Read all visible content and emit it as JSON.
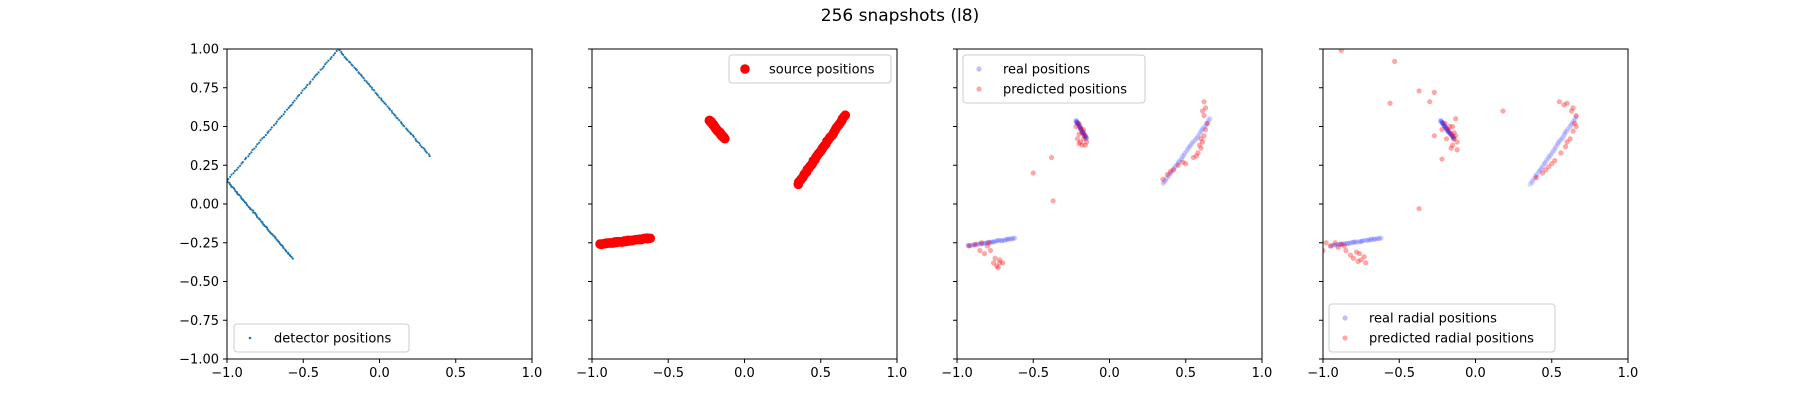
{
  "figure": {
    "title": "256 snapshots (l8)"
  },
  "chart_data": [
    {
      "type": "scatter",
      "title": "",
      "xlabel": "",
      "ylabel": "",
      "xlim": [
        -1.0,
        1.0
      ],
      "ylim": [
        -1.0,
        1.0
      ],
      "xticks": [
        "−1.0",
        "−0.5",
        "0.0",
        "0.5",
        "1.0"
      ],
      "yticks": [
        "−1.00",
        "−0.75",
        "−0.50",
        "−0.25",
        "0.00",
        "0.25",
        "0.50",
        "0.75",
        "1.00"
      ],
      "legend_position": "lower-center",
      "series": [
        {
          "name": "detector positions",
          "color": "#1f77b4",
          "marker_size": "tiny",
          "segments": [
            {
              "from": [
                -1.0,
                0.15
              ],
              "to": [
                -0.27,
                1.0
              ]
            },
            {
              "from": [
                -0.27,
                1.0
              ],
              "to": [
                0.33,
                0.31
              ]
            },
            {
              "from": [
                -1.0,
                0.15
              ],
              "to": [
                -0.57,
                -0.35
              ]
            }
          ],
          "points_per_segment": 70
        }
      ]
    },
    {
      "type": "scatter",
      "title": "",
      "xlabel": "",
      "ylabel": "",
      "xlim": [
        -1.0,
        1.0
      ],
      "ylim": [
        -1.0,
        1.0
      ],
      "xticks": [
        "−1.0",
        "−0.5",
        "0.0",
        "0.5",
        "1.0"
      ],
      "legend_position": "upper-right",
      "series": [
        {
          "name": "source positions",
          "color": "#ff0000",
          "marker_size": "large",
          "segments": [
            {
              "from": [
                -0.95,
                -0.26
              ],
              "to": [
                -0.62,
                -0.22
              ]
            },
            {
              "from": [
                -0.23,
                0.54
              ],
              "to": [
                -0.13,
                0.42
              ]
            },
            {
              "from": [
                0.35,
                0.13
              ],
              "to": [
                0.66,
                0.57
              ]
            }
          ],
          "points_per_segment": 40
        }
      ]
    },
    {
      "type": "scatter",
      "title": "",
      "xlabel": "",
      "ylabel": "",
      "xlim": [
        -1.0,
        1.0
      ],
      "ylim": [
        -1.0,
        1.0
      ],
      "xticks": [
        "−1.0",
        "−0.5",
        "0.0",
        "0.5",
        "1.0"
      ],
      "legend_position": "upper-left",
      "series": [
        {
          "name": "real positions",
          "color": "#0000ff",
          "alpha": 0.15,
          "segments": [
            {
              "from": [
                -0.93,
                -0.27
              ],
              "to": [
                -0.62,
                -0.22
              ]
            },
            {
              "from": [
                -0.22,
                0.54
              ],
              "to": [
                -0.15,
                0.42
              ]
            },
            {
              "from": [
                0.35,
                0.13
              ],
              "to": [
                0.66,
                0.55
              ]
            }
          ],
          "points_per_segment": 35
        },
        {
          "name": "predicted positions",
          "color": "#ff0000",
          "alpha": 0.35,
          "points": [
            [
              -0.92,
              -0.27
            ],
            [
              -0.88,
              -0.26
            ],
            [
              -0.85,
              -0.3
            ],
            [
              -0.82,
              -0.32
            ],
            [
              -0.8,
              -0.27
            ],
            [
              -0.78,
              -0.3
            ],
            [
              -0.76,
              -0.38
            ],
            [
              -0.74,
              -0.4
            ],
            [
              -0.72,
              -0.36
            ],
            [
              -0.7,
              -0.38
            ],
            [
              -0.75,
              -0.35
            ],
            [
              -0.73,
              -0.41
            ],
            [
              -0.84,
              -0.25
            ],
            [
              -0.79,
              -0.25
            ],
            [
              -0.22,
              0.5
            ],
            [
              -0.2,
              0.45
            ],
            [
              -0.19,
              0.4
            ],
            [
              -0.18,
              0.38
            ],
            [
              -0.2,
              0.52
            ],
            [
              -0.17,
              0.48
            ],
            [
              -0.16,
              0.44
            ],
            [
              -0.21,
              0.42
            ],
            [
              -0.18,
              0.46
            ],
            [
              -0.16,
              0.38
            ],
            [
              -0.2,
              0.39
            ],
            [
              -0.19,
              0.49
            ],
            [
              -0.17,
              0.42
            ],
            [
              -0.15,
              0.4
            ],
            [
              0.35,
              0.16
            ],
            [
              0.38,
              0.19
            ],
            [
              0.42,
              0.22
            ],
            [
              0.45,
              0.25
            ],
            [
              0.48,
              0.27
            ],
            [
              0.5,
              0.26
            ],
            [
              0.55,
              0.3
            ],
            [
              0.58,
              0.33
            ],
            [
              0.6,
              0.36
            ],
            [
              0.61,
              0.4
            ],
            [
              0.62,
              0.44
            ],
            [
              0.63,
              0.48
            ],
            [
              0.64,
              0.52
            ],
            [
              0.62,
              0.57
            ],
            [
              0.63,
              0.62
            ],
            [
              0.62,
              0.66
            ],
            [
              0.59,
              0.38
            ],
            [
              0.6,
              0.42
            ],
            [
              0.57,
              0.31
            ],
            [
              0.4,
              0.21
            ],
            [
              0.61,
              0.6
            ],
            [
              -0.37,
              0.02
            ],
            [
              -0.5,
              0.2
            ],
            [
              -0.38,
              0.3
            ],
            [
              -0.72,
              -0.38
            ]
          ]
        }
      ]
    },
    {
      "type": "scatter",
      "title": "",
      "xlabel": "",
      "ylabel": "",
      "xlim": [
        -1.0,
        1.0
      ],
      "ylim": [
        -1.0,
        1.0
      ],
      "xticks": [
        "−1.0",
        "−0.5",
        "0.0",
        "0.5",
        "1.0"
      ],
      "legend_position": "lower-left",
      "series": [
        {
          "name": "real radial positions",
          "color": "#0000ff",
          "alpha": 0.15,
          "segments": [
            {
              "from": [
                -0.95,
                -0.27
              ],
              "to": [
                -0.62,
                -0.22
              ]
            },
            {
              "from": [
                -0.23,
                0.54
              ],
              "to": [
                -0.14,
                0.42
              ]
            },
            {
              "from": [
                0.36,
                0.13
              ],
              "to": [
                0.66,
                0.56
              ]
            }
          ],
          "points_per_segment": 35
        },
        {
          "name": "predicted radial positions",
          "color": "#ff0000",
          "alpha": 0.35,
          "points": [
            [
              -0.98,
              -0.25
            ],
            [
              -0.95,
              -0.27
            ],
            [
              -0.92,
              -0.25
            ],
            [
              -0.9,
              -0.28
            ],
            [
              -0.88,
              -0.26
            ],
            [
              -0.85,
              -0.3
            ],
            [
              -0.82,
              -0.33
            ],
            [
              -0.8,
              -0.35
            ],
            [
              -0.77,
              -0.37
            ],
            [
              -0.75,
              -0.36
            ],
            [
              -0.73,
              -0.34
            ],
            [
              -0.76,
              -0.32
            ],
            [
              -0.72,
              -0.38
            ],
            [
              -0.78,
              -0.31
            ],
            [
              -0.86,
              -0.27
            ],
            [
              -0.2,
              0.52
            ],
            [
              -0.18,
              0.48
            ],
            [
              -0.16,
              0.45
            ],
            [
              -0.14,
              0.42
            ],
            [
              -0.12,
              0.4
            ],
            [
              -0.15,
              0.38
            ],
            [
              -0.17,
              0.5
            ],
            [
              -0.13,
              0.55
            ],
            [
              -0.14,
              0.46
            ],
            [
              -0.12,
              0.35
            ],
            [
              -0.19,
              0.42
            ],
            [
              -0.16,
              0.36
            ],
            [
              -0.15,
              0.5
            ],
            [
              -0.13,
              0.44
            ],
            [
              0.4,
              0.17
            ],
            [
              0.44,
              0.2
            ],
            [
              0.48,
              0.24
            ],
            [
              0.52,
              0.28
            ],
            [
              0.56,
              0.33
            ],
            [
              0.59,
              0.37
            ],
            [
              0.62,
              0.42
            ],
            [
              0.64,
              0.47
            ],
            [
              0.65,
              0.52
            ],
            [
              0.66,
              0.57
            ],
            [
              0.64,
              0.62
            ],
            [
              0.6,
              0.65
            ],
            [
              0.55,
              0.66
            ],
            [
              0.58,
              0.64
            ],
            [
              0.63,
              0.6
            ],
            [
              0.66,
              0.5
            ],
            [
              0.5,
              0.26
            ],
            [
              0.46,
              0.22
            ],
            [
              0.6,
              0.4
            ],
            [
              -0.88,
              0.99
            ],
            [
              -0.53,
              0.92
            ],
            [
              -0.37,
              0.73
            ],
            [
              -0.27,
              0.72
            ],
            [
              -0.3,
              0.66
            ],
            [
              -0.56,
              0.65
            ],
            [
              -0.22,
              0.48
            ],
            [
              -0.22,
              0.29
            ],
            [
              -0.27,
              0.44
            ],
            [
              0.18,
              0.6
            ],
            [
              -0.37,
              -0.03
            ],
            [
              -1.0,
              -0.3
            ]
          ]
        }
      ]
    }
  ]
}
